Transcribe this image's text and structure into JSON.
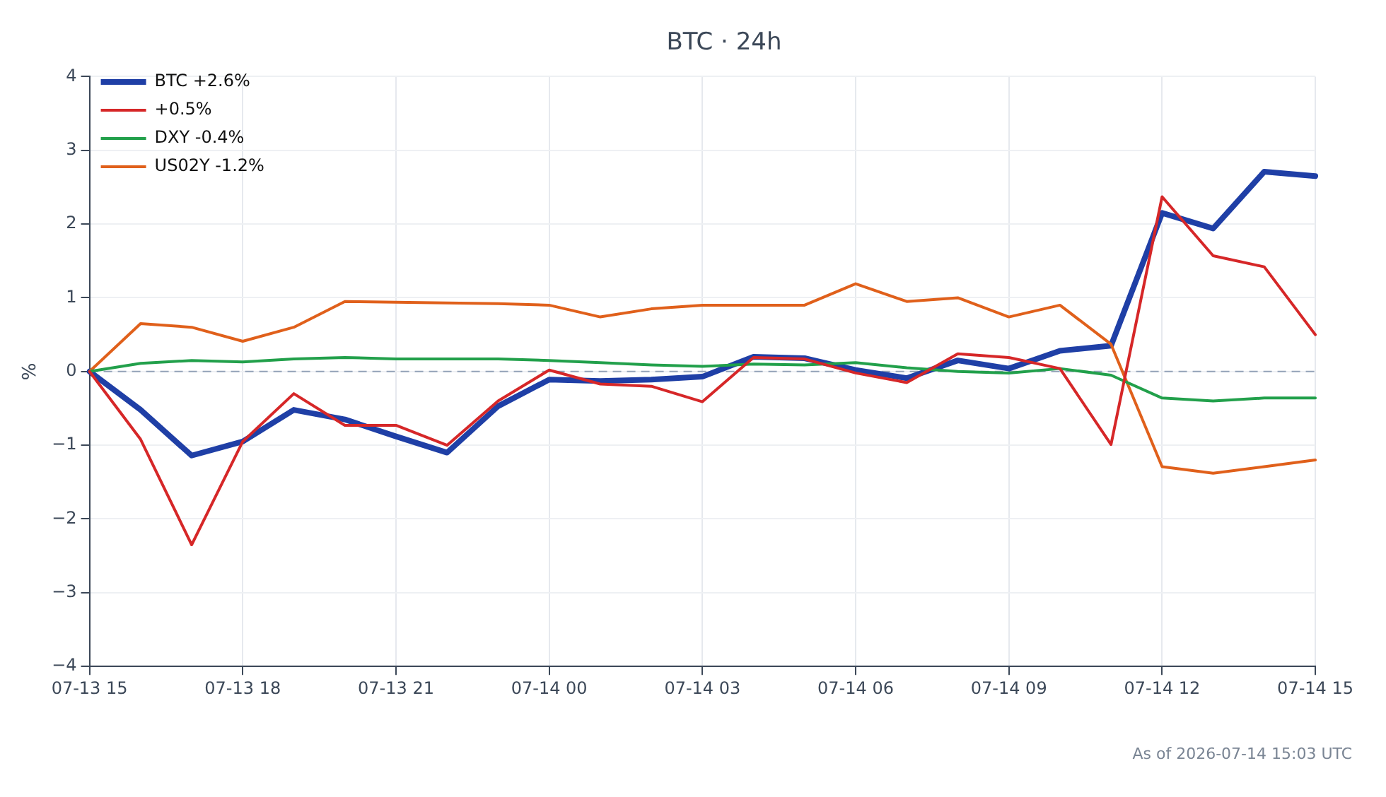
{
  "chart_data": {
    "type": "line",
    "title": "BTC · 24h",
    "ylabel": "%",
    "categories": [
      "07-13 15",
      null,
      null,
      "07-13 18",
      null,
      null,
      "07-13 21",
      null,
      null,
      "07-14 00",
      null,
      null,
      "07-14 03",
      null,
      null,
      "07-14 06",
      null,
      null,
      "07-14 09",
      null,
      null,
      "07-14 12",
      null,
      null,
      "07-14 15"
    ],
    "series": [
      {
        "name": "BTC +2.6%",
        "color": "#1f3fa6",
        "values": [
          0,
          -0.52,
          -1.14,
          -0.95,
          -0.52,
          -0.65,
          -0.88,
          -1.1,
          -0.47,
          -0.11,
          -0.13,
          -0.11,
          -0.07,
          0.2,
          0.18,
          0.02,
          -0.09,
          0.15,
          0.04,
          0.28,
          0.35,
          2.15,
          1.94,
          2.71,
          2.65
        ]
      },
      {
        "name": "+0.5%",
        "color": "#d62728",
        "values": [
          0,
          -0.92,
          -2.35,
          -0.95,
          -0.3,
          -0.73,
          -0.73,
          -1.0,
          -0.4,
          0.02,
          -0.17,
          -0.2,
          -0.41,
          0.19,
          0.17,
          -0.02,
          -0.15,
          0.24,
          0.19,
          0.04,
          -0.99,
          2.37,
          1.57,
          1.42,
          0.5
        ]
      },
      {
        "name": "DXY -0.4%",
        "color": "#22a04b",
        "values": [
          0,
          0.11,
          0.15,
          0.13,
          0.17,
          0.19,
          0.17,
          0.17,
          0.17,
          0.15,
          0.12,
          0.09,
          0.07,
          0.1,
          0.09,
          0.12,
          0.05,
          0.0,
          -0.02,
          0.04,
          -0.05,
          -0.36,
          -0.4,
          -0.36,
          -0.36
        ]
      },
      {
        "name": "US02Y -1.2%",
        "color": "#e0601b",
        "values": [
          0,
          0.65,
          0.6,
          0.41,
          0.6,
          0.95,
          0.94,
          0.93,
          0.92,
          0.9,
          0.74,
          0.85,
          0.9,
          0.9,
          0.9,
          1.19,
          0.95,
          1.0,
          0.74,
          0.9,
          0.37,
          -1.29,
          -1.38,
          -1.29,
          -1.2
        ]
      }
    ],
    "ylim": [
      -4,
      4
    ],
    "yticks": [
      -4,
      -3,
      -2,
      -1,
      0,
      1,
      2,
      3,
      4
    ],
    "ref_lines": [
      {
        "axis": "y",
        "value": 0,
        "color": "#94a3b8",
        "line_style": "dashed"
      }
    ],
    "grid": true,
    "legend": "top left",
    "marker": "none",
    "line_style": "solid",
    "annotations": [
      "As of 2026-07-14 15:03 UTC"
    ]
  }
}
